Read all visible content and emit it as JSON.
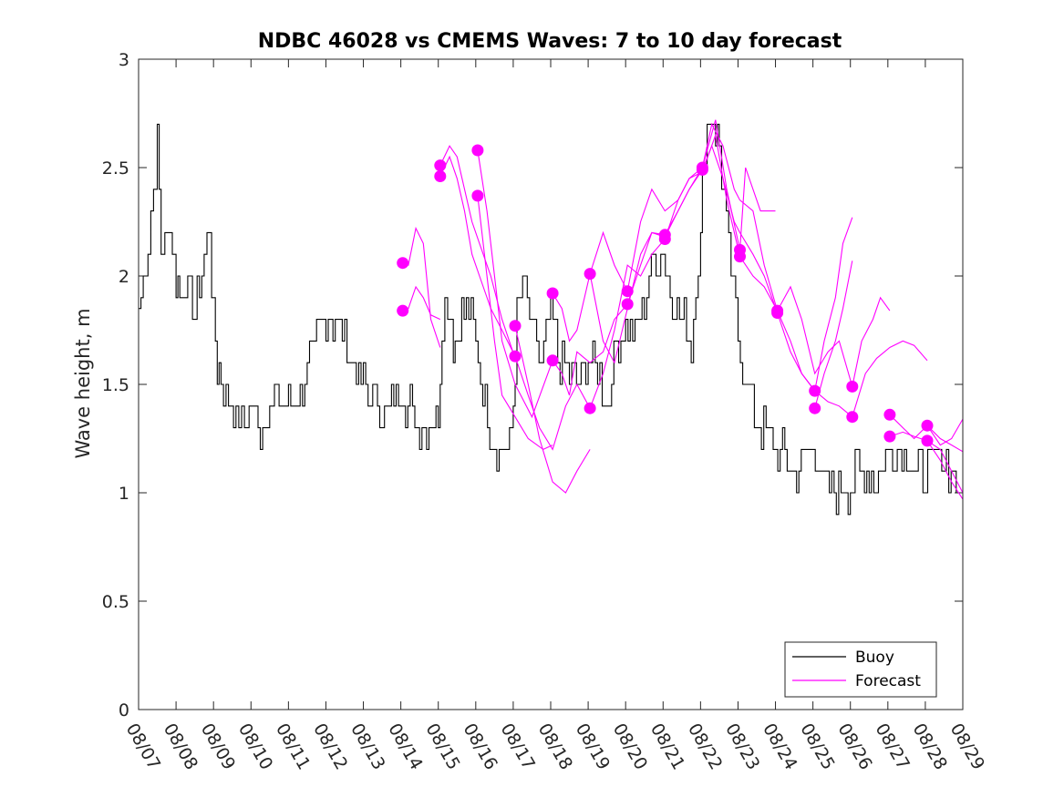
{
  "chart_data": {
    "type": "line",
    "title": "NDBC 46028 vs CMEMS Waves: 7 to 10 day forecast",
    "xlabel": "",
    "ylabel": "Wave height, m",
    "xlim": [
      0,
      22
    ],
    "ylim": [
      0,
      3
    ],
    "x_tick_values": [
      0,
      1,
      2,
      3,
      4,
      5,
      6,
      7,
      8,
      9,
      10,
      11,
      12,
      13,
      14,
      15,
      16,
      17,
      18,
      19,
      20,
      21,
      22
    ],
    "x_tick_labels": [
      "08/07",
      "08/08",
      "08/09",
      "08/10",
      "08/11",
      "08/12",
      "08/13",
      "08/14",
      "08/15",
      "08/16",
      "08/17",
      "08/18",
      "08/19",
      "08/20",
      "08/21",
      "08/22",
      "08/23",
      "08/24",
      "08/25",
      "08/26",
      "08/27",
      "08/28",
      "08/29"
    ],
    "y_tick_values": [
      0,
      0.5,
      1,
      1.5,
      2,
      2.5,
      3
    ],
    "y_tick_labels": [
      "0",
      "0.5",
      "1",
      "1.5",
      "2",
      "2.5",
      "3"
    ],
    "legend": {
      "position": "bottom-right",
      "entries": [
        "Buoy",
        "Forecast"
      ]
    },
    "colors": {
      "buoy": "#000000",
      "forecast": "#ff00ff"
    },
    "buoy_series": {
      "name": "Buoy",
      "x": [
        0.0,
        0.25,
        0.4,
        0.5,
        0.6,
        0.7,
        0.8,
        0.9,
        1.0,
        1.1,
        1.25,
        1.5,
        1.75,
        1.9,
        2.0,
        2.1,
        2.2,
        2.4,
        2.6,
        2.75,
        2.9,
        3.0,
        3.25,
        3.5,
        3.75,
        4.0,
        4.25,
        4.5,
        4.75,
        5.0,
        5.25,
        5.5,
        5.75,
        6.0,
        6.25,
        6.5,
        6.75,
        7.0,
        7.25,
        7.5,
        7.75,
        8.0,
        8.1,
        8.25,
        8.4,
        8.5,
        8.75,
        9.0,
        9.25,
        9.5,
        9.75,
        9.9,
        10.0,
        10.1,
        10.25,
        10.5,
        10.75,
        11.0,
        11.25,
        11.5,
        11.75,
        12.0,
        12.25,
        12.5,
        12.75,
        13.0,
        13.25,
        13.5,
        13.75,
        14.0,
        14.25,
        14.5,
        14.75,
        15.0,
        15.1,
        15.25,
        15.4,
        15.5,
        15.75,
        16.0,
        16.25,
        16.5,
        16.75,
        17.0,
        17.25,
        17.5,
        17.75,
        18.0,
        18.25,
        18.5,
        18.75,
        19.0,
        19.25,
        19.5,
        19.75,
        20.0,
        20.25,
        20.5,
        20.75,
        21.0,
        21.25,
        21.5,
        21.75,
        21.9
      ],
      "y": [
        1.85,
        2.2,
        2.4,
        2.6,
        2.1,
        2.1,
        2.3,
        2.2,
        2.0,
        1.9,
        2.0,
        1.8,
        2.1,
        2.2,
        1.8,
        1.6,
        1.5,
        1.4,
        1.35,
        1.3,
        1.4,
        1.4,
        1.3,
        1.4,
        1.45,
        1.4,
        1.45,
        1.55,
        1.7,
        1.8,
        1.8,
        1.7,
        1.6,
        1.5,
        1.4,
        1.4,
        1.4,
        1.45,
        1.4,
        1.3,
        1.3,
        1.4,
        1.8,
        1.9,
        1.7,
        1.7,
        1.9,
        1.7,
        1.4,
        1.2,
        1.2,
        1.25,
        1.4,
        1.8,
        2.0,
        1.75,
        1.6,
        1.8,
        1.6,
        1.55,
        1.5,
        1.6,
        1.6,
        1.4,
        1.7,
        1.8,
        1.7,
        1.9,
        2.1,
        2.1,
        1.9,
        1.8,
        1.7,
        2.2,
        2.6,
        2.7,
        2.7,
        2.6,
        2.1,
        1.7,
        1.5,
        1.3,
        1.3,
        1.2,
        1.2,
        1.1,
        1.2,
        1.2,
        1.05,
        1.05,
        1.0,
        1.05,
        1.1,
        1.05,
        1.1,
        1.2,
        1.2,
        1.15,
        1.1,
        1.1,
        1.15,
        1.15,
        1.1,
        0.9
      ]
    },
    "forecast_series": [
      {
        "name": "Forecast",
        "x": [
          7.05,
          7.2,
          7.4,
          7.6,
          7.8,
          8.05
        ],
        "y": [
          2.06,
          2.05,
          2.22,
          2.15,
          1.8,
          1.67
        ]
      },
      {
        "name": "Forecast",
        "x": [
          7.05,
          7.2,
          7.4,
          7.6,
          7.8,
          8.05
        ],
        "y": [
          1.84,
          1.85,
          1.95,
          1.9,
          1.82,
          1.8
        ]
      },
      {
        "name": "Forecast",
        "x": [
          8.05,
          8.3,
          8.5,
          8.7,
          8.9,
          9.1,
          9.4,
          9.7,
          10.05
        ],
        "y": [
          2.51,
          2.6,
          2.55,
          2.4,
          2.25,
          2.15,
          2.0,
          1.8,
          1.62
        ]
      },
      {
        "name": "Forecast",
        "x": [
          8.05,
          8.3,
          8.5,
          8.7,
          8.9,
          9.1,
          9.4,
          9.7,
          10.05
        ],
        "y": [
          2.46,
          2.55,
          2.45,
          2.3,
          2.1,
          2.0,
          1.85,
          1.75,
          1.63
        ]
      },
      {
        "name": "Forecast",
        "x": [
          9.05,
          9.3,
          9.5,
          9.7,
          10.05,
          10.5,
          11.05
        ],
        "y": [
          2.58,
          2.3,
          2.0,
          1.7,
          1.5,
          1.35,
          1.61
        ]
      },
      {
        "name": "Forecast",
        "x": [
          9.05,
          9.3,
          9.5,
          9.7,
          10.05,
          10.4,
          10.8,
          11.05
        ],
        "y": [
          2.37,
          2.0,
          1.7,
          1.45,
          1.35,
          1.25,
          1.2,
          1.22
        ]
      },
      {
        "name": "Forecast",
        "x": [
          10.05,
          10.4,
          10.7,
          11.05,
          11.4,
          11.7,
          12.05
        ],
        "y": [
          1.77,
          1.5,
          1.25,
          1.05,
          1.0,
          1.1,
          1.2
        ]
      },
      {
        "name": "Forecast",
        "x": [
          10.05,
          10.4,
          10.7,
          11.05,
          11.4,
          11.7,
          12.05
        ],
        "y": [
          1.63,
          1.45,
          1.3,
          1.2,
          1.4,
          1.5,
          1.39
        ]
      },
      {
        "name": "Forecast",
        "x": [
          11.05,
          11.3,
          11.5,
          11.7,
          12.05,
          12.4,
          12.7,
          13.05
        ],
        "y": [
          1.92,
          1.85,
          1.7,
          1.75,
          2.01,
          2.2,
          2.05,
          1.93
        ]
      },
      {
        "name": "Forecast",
        "x": [
          11.05,
          11.3,
          11.5,
          11.7,
          12.05,
          12.4,
          12.7,
          13.05
        ],
        "y": [
          1.61,
          1.55,
          1.45,
          1.65,
          1.6,
          1.65,
          1.8,
          1.87
        ]
      },
      {
        "name": "Forecast",
        "x": [
          12.05,
          12.4,
          12.7,
          13.05,
          13.4,
          13.7,
          14.05
        ],
        "y": [
          2.01,
          1.7,
          1.6,
          1.85,
          2.1,
          2.2,
          2.19
        ]
      },
      {
        "name": "Forecast",
        "x": [
          12.05,
          12.4,
          12.7,
          13.05,
          13.4,
          13.7,
          14.05
        ],
        "y": [
          1.39,
          1.55,
          1.75,
          2.05,
          2.0,
          2.1,
          2.17
        ]
      },
      {
        "name": "Forecast",
        "x": [
          13.05,
          13.4,
          13.7,
          14.05,
          14.4,
          14.7,
          15.05
        ],
        "y": [
          1.93,
          2.25,
          2.4,
          2.3,
          2.35,
          2.45,
          2.5
        ]
      },
      {
        "name": "Forecast",
        "x": [
          13.05,
          13.4,
          13.7,
          14.05,
          14.4,
          14.7,
          15.05
        ],
        "y": [
          1.87,
          2.05,
          2.2,
          2.18,
          2.3,
          2.4,
          2.49
        ]
      },
      {
        "name": "Forecast",
        "x": [
          14.05,
          14.4,
          14.7,
          15.05,
          15.4,
          15.7,
          16.05
        ],
        "y": [
          2.19,
          2.3,
          2.4,
          2.5,
          2.72,
          2.4,
          2.12
        ]
      },
      {
        "name": "Forecast",
        "x": [
          14.05,
          14.4,
          14.7,
          15.05,
          15.4,
          15.7,
          16.05
        ],
        "y": [
          2.17,
          2.35,
          2.45,
          2.48,
          2.65,
          2.35,
          2.09
        ]
      },
      {
        "name": "Forecast",
        "x": [
          15.05,
          15.3,
          15.6,
          15.9,
          16.05,
          16.4,
          16.7,
          17.05
        ],
        "y": [
          2.5,
          2.7,
          2.6,
          2.4,
          2.35,
          2.3,
          2.05,
          1.84
        ]
      },
      {
        "name": "Forecast",
        "x": [
          15.05,
          15.3,
          15.6,
          15.9,
          16.05,
          16.4,
          16.7,
          17.05
        ],
        "y": [
          2.49,
          2.6,
          2.45,
          2.25,
          2.2,
          2.1,
          2.0,
          1.83
        ]
      },
      {
        "name": "Forecast",
        "x": [
          16.05,
          16.2,
          16.4,
          16.6,
          16.8,
          17.0
        ],
        "y": [
          2.12,
          2.5,
          2.4,
          2.3,
          2.3,
          2.3
        ]
      },
      {
        "name": "Forecast",
        "x": [
          16.05,
          16.4,
          16.7,
          17.05,
          17.4,
          17.7,
          18.05
        ],
        "y": [
          2.09,
          2.0,
          1.95,
          1.84,
          1.7,
          1.55,
          1.47
        ]
      },
      {
        "name": "Forecast",
        "x": [
          17.05,
          17.4,
          17.7,
          18.05,
          18.4,
          18.7,
          19.05
        ],
        "y": [
          1.84,
          1.95,
          1.8,
          1.55,
          1.65,
          1.7,
          1.49
        ]
      },
      {
        "name": "Forecast",
        "x": [
          17.05,
          17.4,
          17.7,
          18.05,
          18.4,
          18.7,
          19.05
        ],
        "y": [
          1.83,
          1.65,
          1.55,
          1.47,
          1.42,
          1.4,
          1.35
        ]
      },
      {
        "name": "Forecast",
        "x": [
          18.05,
          18.3,
          18.6,
          18.8,
          19.05
        ],
        "y": [
          1.47,
          1.7,
          1.9,
          2.15,
          2.27
        ]
      },
      {
        "name": "Forecast",
        "x": [
          18.05,
          18.3,
          18.6,
          18.8,
          19.05
        ],
        "y": [
          1.39,
          1.55,
          1.7,
          1.85,
          2.07
        ]
      },
      {
        "name": "Forecast",
        "x": [
          19.05,
          19.3,
          19.6,
          19.8,
          20.05
        ],
        "y": [
          1.49,
          1.7,
          1.8,
          1.9,
          1.84
        ]
      },
      {
        "name": "Forecast",
        "x": [
          19.05,
          19.4,
          19.7,
          20.05,
          20.4,
          20.7,
          21.05
        ],
        "y": [
          1.35,
          1.55,
          1.62,
          1.67,
          1.7,
          1.68,
          1.61
        ]
      },
      {
        "name": "Forecast",
        "x": [
          20.05,
          20.4,
          20.7,
          21.05,
          21.4,
          21.7,
          22.0
        ],
        "y": [
          1.36,
          1.3,
          1.25,
          1.31,
          1.22,
          1.25,
          1.34
        ]
      },
      {
        "name": "Forecast",
        "x": [
          20.05,
          20.4,
          20.7,
          21.05,
          21.4,
          21.7,
          22.0
        ],
        "y": [
          1.26,
          1.28,
          1.26,
          1.24,
          1.15,
          1.05,
          0.97
        ]
      },
      {
        "name": "Forecast",
        "x": [
          21.05,
          21.4,
          21.7,
          22.0
        ],
        "y": [
          1.31,
          1.25,
          1.22,
          1.19
        ]
      },
      {
        "name": "Forecast",
        "x": [
          21.05,
          21.4,
          21.7,
          22.0
        ],
        "y": [
          1.24,
          1.2,
          1.1,
          1.0
        ]
      }
    ],
    "forecast_markers": {
      "x": [
        7.05,
        7.05,
        8.05,
        8.05,
        9.05,
        9.05,
        10.05,
        10.05,
        11.05,
        11.05,
        12.05,
        12.05,
        13.05,
        13.05,
        14.05,
        14.05,
        15.05,
        15.05,
        16.05,
        16.05,
        17.05,
        17.05,
        18.05,
        18.05,
        19.05,
        19.05,
        20.05,
        20.05,
        21.05,
        21.05
      ],
      "y": [
        2.06,
        1.84,
        2.51,
        2.46,
        2.58,
        2.37,
        1.77,
        1.63,
        1.92,
        1.61,
        2.01,
        1.39,
        1.93,
        1.87,
        2.19,
        2.17,
        2.5,
        2.49,
        2.12,
        2.09,
        1.84,
        1.83,
        1.47,
        1.39,
        1.49,
        1.35,
        1.36,
        1.26,
        1.31,
        1.24
      ]
    }
  }
}
